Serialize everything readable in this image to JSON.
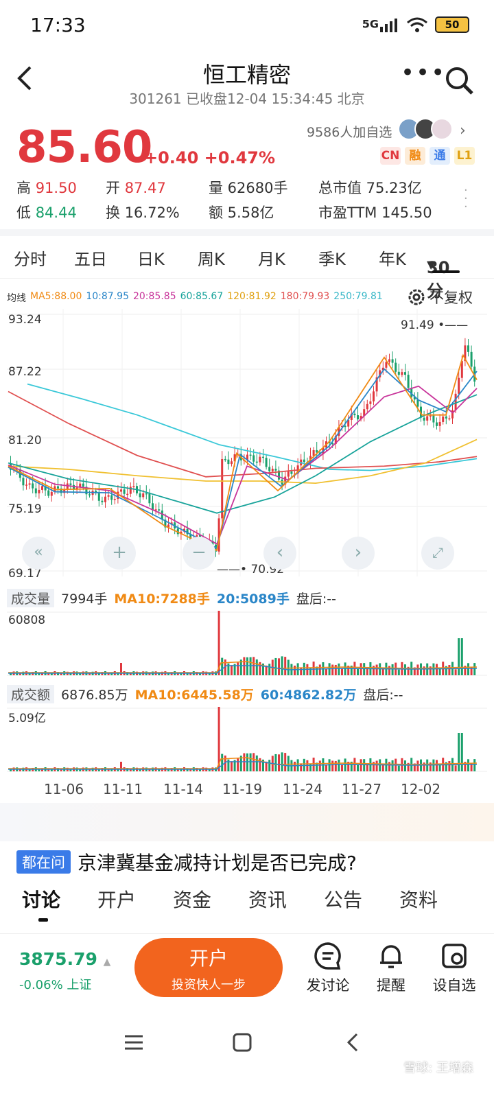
{
  "status": {
    "time": "17:33",
    "network": "5G",
    "battery": "50"
  },
  "header": {
    "title": "恒工精密",
    "subtitle": "301261 已收盘12-04 15:34:45 北京"
  },
  "quote": {
    "price": "85.60",
    "change": "+0.40 +0.47%",
    "followers": "9586人加自选",
    "tags": [
      "CN",
      "融",
      "通",
      "L1"
    ]
  },
  "stats": {
    "high_label": "高",
    "high": "91.50",
    "open_label": "开",
    "open": "87.47",
    "vol": "量 62680手",
    "mcap": "总市值 75.23亿",
    "low_label": "低",
    "low": "84.44",
    "turn_label": "换",
    "turn": "16.72%",
    "amt": "额 5.58亿",
    "pe": "市盈TTM 145.50"
  },
  "tabs": [
    "分时",
    "五日",
    "日K",
    "周K",
    "月K",
    "季K",
    "年K",
    "30分"
  ],
  "ma_legend": {
    "label": "均线",
    "ma5": "MA5:88.00",
    "ma10": "10:87.95",
    "ma20": "20:85.85",
    "ma60": "60:85.67",
    "ma120": "120:81.92",
    "ma180": "180:79.93",
    "ma250": "250:79.81"
  },
  "fq": "不复权",
  "chart_data": {
    "type": "candlestick",
    "y_ticks": [
      "93.24",
      "87.22",
      "81.20",
      "75.19",
      "69.17"
    ],
    "ylim": [
      69.17,
      93.24
    ],
    "max_label": "91.49",
    "min_label": "70.92",
    "x_ticks": [
      "11-06",
      "11-11",
      "11-14",
      "11-19",
      "11-24",
      "11-27",
      "12-02"
    ],
    "vol_max": "60808",
    "amt_max": "5.09亿",
    "colors": {
      "up": "#e0383e",
      "down": "#1aa06b",
      "ma5": "#f08a14",
      "ma10": "#2a86c8",
      "ma20": "#c8349a",
      "ma60": "#17a39a",
      "ma120": "#f0c030",
      "ma180": "#e05050",
      "ma250": "#3ac8d8"
    }
  },
  "volume": {
    "label": "成交量",
    "value": "7994手",
    "ma10": "MA10:7288手",
    "ma20": "20:5089手",
    "after": "盘后:--"
  },
  "amount": {
    "label": "成交额",
    "value": "6876.85万",
    "ma10": "MA10:6445.58万",
    "ma60": "60:4862.82万",
    "after": "盘后:--"
  },
  "news": {
    "tag": "都在问",
    "text": "京津冀基金减持计划是否已完成?"
  },
  "bottom_tabs": [
    "讨论",
    "开户",
    "资金",
    "资讯",
    "公告",
    "资料"
  ],
  "index": {
    "value": "3875.79",
    "change": "-0.06% 上证"
  },
  "open_account": {
    "title": "开户",
    "sub": "投资快人一步"
  },
  "actions": [
    "发讨论",
    "提醒",
    "设自选"
  ],
  "watermark": "雪球: 王增森"
}
